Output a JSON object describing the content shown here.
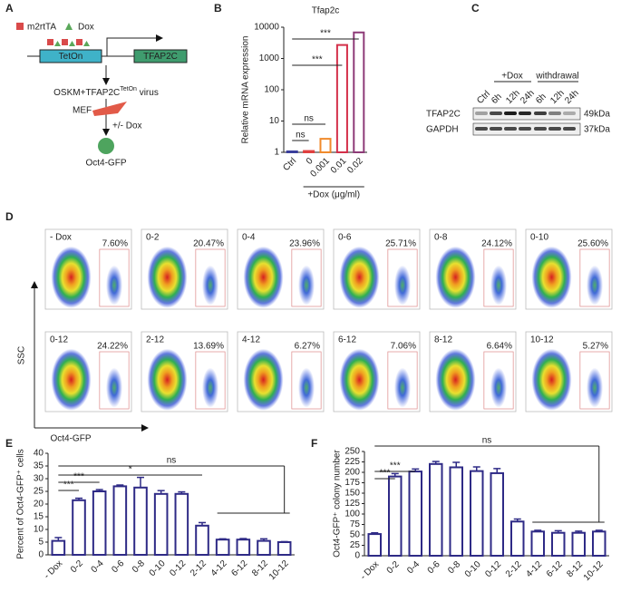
{
  "chart_data": [
    {
      "type": "bar",
      "panel": "B",
      "title": "Tfap2c",
      "ylabel": "Relative mRNA expression",
      "xlabel": "+Dox (μg/ml)",
      "categories": [
        "Ctrl",
        "0",
        "0.001",
        "0.01",
        "0.02"
      ],
      "values": [
        1,
        1.1,
        2.7,
        2700,
        6800
      ],
      "colors": [
        "#3b3f9c",
        "#e0403f",
        "#f08a2c",
        "#d4304a",
        "#8e3b78"
      ],
      "log_scale": true,
      "ylim": [
        1,
        10000
      ],
      "yticks": [
        1,
        10,
        100,
        1000,
        10000
      ],
      "annotations": [
        "ns",
        "ns",
        "***",
        "***"
      ]
    },
    {
      "type": "bar",
      "panel": "E",
      "ylabel": "Percent of Oct4-GFP⁺ cells",
      "categories": [
        "- Dox",
        "0-2",
        "0-4",
        "0-6",
        "0-8",
        "0-10",
        "0-12",
        "2-12",
        "4-12",
        "6-12",
        "8-12",
        "10-12"
      ],
      "values": [
        5.5,
        21.5,
        25,
        27,
        26.5,
        24,
        24,
        11.5,
        6,
        6,
        5.5,
        5
      ],
      "errors": [
        1.3,
        0.8,
        0.7,
        0.5,
        4,
        1.3,
        0.8,
        1.2,
        0.3,
        0.4,
        0.8,
        0.2
      ],
      "color": "#2e2a86",
      "ylim": [
        0,
        40
      ],
      "yticks": [
        0,
        5,
        10,
        15,
        20,
        25,
        30,
        35,
        40
      ],
      "annotations": [
        "***",
        "***",
        "*",
        "ns"
      ]
    },
    {
      "type": "bar",
      "panel": "F",
      "ylabel": "Oct4-GFP⁺ colony number",
      "categories": [
        "- Dox",
        "0-2",
        "0-4",
        "0-6",
        "0-8",
        "0-10",
        "0-12",
        "2-12",
        "4-12",
        "6-12",
        "8-12",
        "10-12"
      ],
      "values": [
        52,
        190,
        202,
        220,
        212,
        203,
        198,
        82,
        58,
        55,
        55,
        58
      ],
      "errors": [
        3,
        7,
        6,
        6,
        12,
        10,
        11,
        6,
        3,
        5,
        4,
        3
      ],
      "color": "#2e2a86",
      "ylim": [
        0,
        250
      ],
      "yticks": [
        0,
        25,
        50,
        75,
        100,
        125,
        150,
        175,
        200,
        225,
        250
      ],
      "annotations": [
        "***",
        "***",
        "ns"
      ]
    }
  ],
  "panel_a": {
    "label": "A",
    "legend": [
      "m2rtTA",
      "Dox"
    ],
    "boxes": [
      "TetOn",
      "TFAP2C"
    ],
    "virus": "OSKM+TFAP2C",
    "virus_sup": "TetOn",
    "virus_suffix": " virus",
    "cell": "MEF",
    "treatment": "+/- Dox",
    "result": "Oct4-GFP"
  },
  "panel_c": {
    "label": "C",
    "groups": [
      "+Dox",
      "withdrawal"
    ],
    "lanes": [
      "Ctrl",
      "6h",
      "12h",
      "24h",
      "6h",
      "12h",
      "24h"
    ],
    "rows": [
      {
        "name": "TFAP2C",
        "size": "49kDa"
      },
      {
        "name": "GAPDH",
        "size": "37kDa"
      }
    ]
  },
  "panel_d": {
    "label": "D",
    "y_axis": "SSC",
    "x_axis": "Oct4-GFP",
    "plots": [
      {
        "name": "- Dox",
        "percent": "7.60%"
      },
      {
        "name": "0-2",
        "percent": "20.47%"
      },
      {
        "name": "0-4",
        "percent": "23.96%"
      },
      {
        "name": "0-6",
        "percent": "25.71%"
      },
      {
        "name": "0-8",
        "percent": "24.12%"
      },
      {
        "name": "0-10",
        "percent": "25.60%"
      },
      {
        "name": "0-12",
        "percent": "24.22%"
      },
      {
        "name": "2-12",
        "percent": "13.69%"
      },
      {
        "name": "4-12",
        "percent": "6.27%"
      },
      {
        "name": "6-12",
        "percent": "7.06%"
      },
      {
        "name": "8-12",
        "percent": "6.64%"
      },
      {
        "name": "10-12",
        "percent": "5.27%"
      }
    ]
  }
}
